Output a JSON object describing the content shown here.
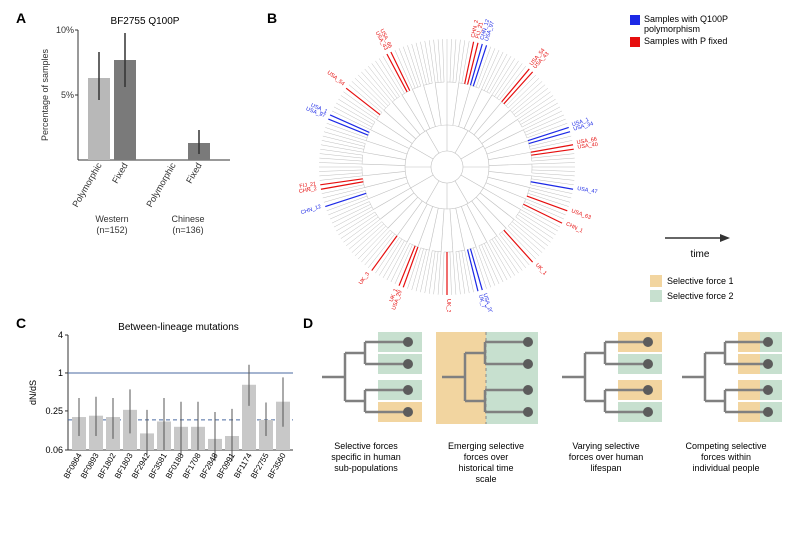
{
  "panelA": {
    "label": "A",
    "title": "BF2755 Q100P",
    "type": "bar",
    "ylabel": "Percentage of samples",
    "ylim": [
      0,
      10
    ],
    "ytick_values": [
      "5%",
      "10%"
    ],
    "ytick_positions": [
      5,
      10
    ],
    "groups": [
      {
        "name": "Western",
        "n": "(n=152)",
        "bars": [
          {
            "label": "Polymorphic",
            "value": 6.3,
            "err_low": 4.6,
            "err_high": 8.3,
            "color": "#b8b8b8"
          },
          {
            "label": "Fixed",
            "value": 7.7,
            "err_low": 5.6,
            "err_high": 9.8,
            "color": "#7a7a7a"
          }
        ]
      },
      {
        "name": "Chinese",
        "n": "(n=136)",
        "bars": [
          {
            "label": "Polymorphic",
            "value": 0,
            "err_low": 0,
            "err_high": 0,
            "color": "#b8b8b8"
          },
          {
            "label": "Fixed",
            "value": 1.3,
            "err_low": 0.5,
            "err_high": 2.3,
            "color": "#7a7a7a"
          }
        ]
      }
    ],
    "bar_width": 0.7,
    "background_color": "#ffffff"
  },
  "panelB": {
    "label": "B",
    "type": "tree",
    "legend": [
      {
        "label": "Samples with Q100P polymorphism",
        "color": "#1c29e6"
      },
      {
        "label": "Samples with P fixed",
        "color": "#e60e0e"
      }
    ],
    "time_arrow_label": "time",
    "tree_line_color": "#bfbfbf",
    "highlight_blue": "#1c29e6",
    "highlight_red": "#e60e0e",
    "tip_labels_blue": [
      "CHN_12",
      "USA_97",
      "USA_1",
      "USA_34",
      "USA_47",
      "USA_20",
      "UK_7"
    ],
    "tip_labels_red": [
      "CHN_2",
      "FIJ_21",
      "USA_54",
      "USA_43",
      "USA_66",
      "USA_40",
      "USA_63",
      "CHN_1",
      "UK_1",
      "UK_3",
      "USA_29",
      "UK_1",
      "UK_3"
    ]
  },
  "panelC": {
    "label": "C",
    "title": "Between-lineage mutations",
    "type": "bar",
    "ylabel": "dN/dS",
    "yscale": "log",
    "ytick_values": [
      "0.06",
      "0.25",
      "1",
      "4"
    ],
    "ytick_positions": [
      0.06,
      0.25,
      1,
      4
    ],
    "ref_line_solid": 1,
    "ref_line_dashed": 0.18,
    "ref_line_color": "#4a6aa0",
    "bars": [
      {
        "label": "BF0864",
        "value": 0.2,
        "err_low": 0.1,
        "err_high": 0.4
      },
      {
        "label": "BF0893",
        "value": 0.21,
        "err_low": 0.1,
        "err_high": 0.42
      },
      {
        "label": "BF1802",
        "value": 0.2,
        "err_low": 0.09,
        "err_high": 0.4
      },
      {
        "label": "BF1803",
        "value": 0.26,
        "err_low": 0.11,
        "err_high": 0.55
      },
      {
        "label": "BF2942",
        "value": 0.11,
        "err_low": 0.05,
        "err_high": 0.26
      },
      {
        "label": "BF3581",
        "value": 0.17,
        "err_low": 0.06,
        "err_high": 0.4
      },
      {
        "label": "BF0188",
        "value": 0.14,
        "err_low": 0.05,
        "err_high": 0.35
      },
      {
        "label": "BF1708",
        "value": 0.14,
        "err_low": 0.06,
        "err_high": 0.35
      },
      {
        "label": "BF2848",
        "value": 0.09,
        "err_low": 0.04,
        "err_high": 0.24
      },
      {
        "label": "BF0991",
        "value": 0.1,
        "err_low": 0.04,
        "err_high": 0.27
      },
      {
        "label": "BF1174",
        "value": 0.65,
        "err_low": 0.3,
        "err_high": 1.35
      },
      {
        "label": "BF2755",
        "value": 0.18,
        "err_low": 0.1,
        "err_high": 0.34
      },
      {
        "label": "BF3560",
        "value": 0.35,
        "err_low": 0.14,
        "err_high": 0.85
      }
    ],
    "bar_color": "#c8c8c8",
    "err_color": "#555555"
  },
  "panelD": {
    "label": "D",
    "legend": [
      {
        "label": "Selective force 1",
        "color": "#f2d5a0"
      },
      {
        "label": "Selective force 2",
        "color": "#c7e0cf"
      }
    ],
    "diagrams": [
      {
        "caption": "Selective forces specific in human sub-populations",
        "fills": [
          "force2",
          "force2",
          "force2",
          "force1"
        ]
      },
      {
        "caption": "Emerging selective forces over historical time scale",
        "fills": [
          "force1_then_force2"
        ]
      },
      {
        "caption": "Varying selective forces over human lifespan",
        "fills": [
          "force1",
          "force2",
          "force1",
          "force2"
        ]
      },
      {
        "caption": "Competing selective forces within individual people",
        "fills": [
          "both",
          "both",
          "both",
          "both"
        ]
      }
    ],
    "tree_line_color": "#808080",
    "tip_node_color": "#5c5c5c"
  }
}
